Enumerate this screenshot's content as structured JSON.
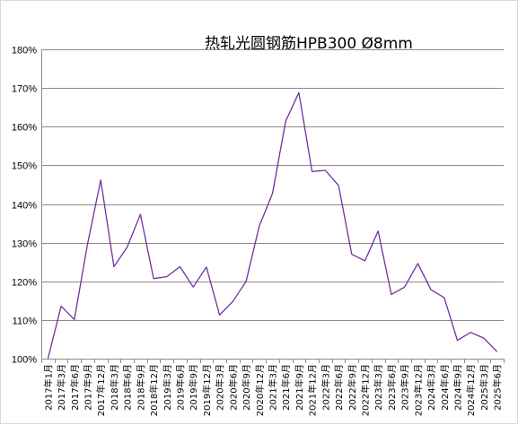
{
  "chart_data": {
    "type": "line",
    "title": "热轧光圆钢筋HPB300 Ø8mm",
    "xlabel": "",
    "ylabel": "",
    "ylim": [
      1.0,
      1.8
    ],
    "y_ticks": [
      "100%",
      "110%",
      "120%",
      "130%",
      "140%",
      "150%",
      "160%",
      "170%",
      "180%"
    ],
    "grid": "horizontal",
    "legend": "none",
    "line_color": "#7030a0",
    "categories": [
      "2017年1月",
      "2017年3月",
      "2017年6月",
      "2017年9月",
      "2017年12月",
      "2018年3月",
      "2018年6月",
      "2018年9月",
      "2018年12月",
      "2019年3月",
      "2019年6月",
      "2019年9月",
      "2019年12月",
      "2020年3月",
      "2020年6月",
      "2020年9月",
      "2020年12月",
      "2021年3月",
      "2021年6月",
      "2021年9月",
      "2021年12月",
      "2022年3月",
      "2022年6月",
      "2022年9月",
      "2022年12月",
      "2023年3月",
      "2023年6月",
      "2023年9月",
      "2023年12月",
      "2024年3月",
      "2024年6月",
      "2024年9月",
      "2024年12月",
      "2025年3月",
      "2025年6月"
    ],
    "values": [
      1.0,
      1.136,
      1.101,
      1.296,
      1.462,
      1.238,
      1.288,
      1.373,
      1.207,
      1.212,
      1.238,
      1.185,
      1.237,
      1.113,
      1.148,
      1.2,
      1.343,
      1.427,
      1.614,
      1.688,
      1.484,
      1.487,
      1.448,
      1.27,
      1.253,
      1.33,
      1.166,
      1.185,
      1.246,
      1.178,
      1.158,
      1.047,
      1.068,
      1.053,
      1.018
    ]
  }
}
